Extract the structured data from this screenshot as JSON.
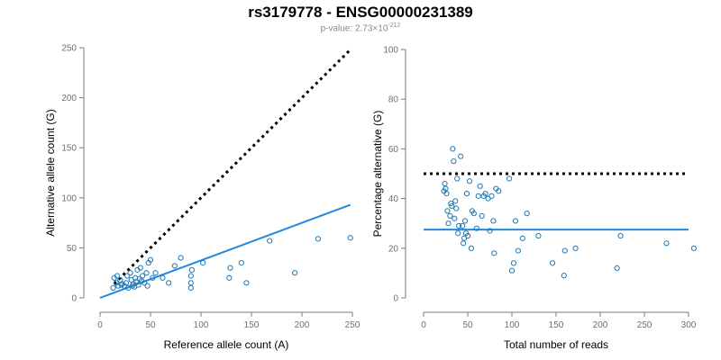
{
  "title": "rs3179778 - ENSG00000231389",
  "subtitle": {
    "prefix": "p-value: 2.73×10",
    "exponent": "-212"
  },
  "colors": {
    "points": "#1f78b4",
    "fit_line": "#1e88e5",
    "reference_line": "#000000",
    "axis": "#7a7a7a"
  },
  "chart_data": [
    {
      "type": "scatter",
      "xlabel": "Reference allele count (A)",
      "ylabel": "Alternative allele count (G)",
      "xlim": [
        0,
        250
      ],
      "ylim": [
        0,
        250
      ],
      "xticks": [
        0,
        50,
        100,
        150,
        200,
        250
      ],
      "yticks": [
        0,
        50,
        100,
        150,
        200,
        250
      ],
      "grid": false,
      "points": [
        [
          13,
          10
        ],
        [
          14,
          20
        ],
        [
          16,
          15
        ],
        [
          17,
          22
        ],
        [
          18,
          12
        ],
        [
          20,
          18
        ],
        [
          21,
          13
        ],
        [
          22,
          14
        ],
        [
          24,
          12
        ],
        [
          26,
          15
        ],
        [
          27,
          22
        ],
        [
          28,
          10
        ],
        [
          30,
          25
        ],
        [
          31,
          18
        ],
        [
          32,
          12
        ],
        [
          33,
          14
        ],
        [
          34,
          11
        ],
        [
          35,
          20
        ],
        [
          36,
          16
        ],
        [
          37,
          28
        ],
        [
          38,
          13
        ],
        [
          39,
          19
        ],
        [
          40,
          30
        ],
        [
          41,
          17
        ],
        [
          42,
          22
        ],
        [
          44,
          15
        ],
        [
          46,
          25
        ],
        [
          47,
          12
        ],
        [
          48,
          35
        ],
        [
          50,
          38
        ],
        [
          52,
          20
        ],
        [
          55,
          25
        ],
        [
          62,
          20
        ],
        [
          68,
          15
        ],
        [
          74,
          32
        ],
        [
          80,
          40
        ],
        [
          90,
          10
        ],
        [
          90,
          15
        ],
        [
          90,
          22
        ],
        [
          91,
          28
        ],
        [
          102,
          35
        ],
        [
          128,
          20
        ],
        [
          129,
          30
        ],
        [
          140,
          35
        ],
        [
          145,
          15
        ],
        [
          168,
          57
        ],
        [
          193,
          25
        ],
        [
          216,
          59
        ],
        [
          248,
          60
        ]
      ],
      "lines": [
        {
          "style": "dotted",
          "from": [
            14,
            14
          ],
          "to": [
            248,
            248
          ]
        },
        {
          "style": "solid",
          "from": [
            0,
            0
          ],
          "to": [
            248,
            93
          ]
        }
      ]
    },
    {
      "type": "scatter",
      "xlabel": "Total number of reads",
      "ylabel": "Percentage alternative (G)",
      "xlim": [
        0,
        300
      ],
      "ylim": [
        0,
        100
      ],
      "xticks": [
        0,
        50,
        100,
        150,
        200,
        250,
        300
      ],
      "yticks": [
        0,
        20,
        40,
        60,
        80,
        100
      ],
      "grid": false,
      "points": [
        [
          23,
          43
        ],
        [
          24,
          46
        ],
        [
          25,
          44
        ],
        [
          26,
          42
        ],
        [
          27,
          35
        ],
        [
          28,
          30
        ],
        [
          30,
          33
        ],
        [
          31,
          38
        ],
        [
          32,
          37
        ],
        [
          33,
          60
        ],
        [
          34,
          55
        ],
        [
          35,
          32
        ],
        [
          36,
          39
        ],
        [
          37,
          36
        ],
        [
          38,
          48
        ],
        [
          39,
          26
        ],
        [
          40,
          29
        ],
        [
          42,
          57
        ],
        [
          44,
          29
        ],
        [
          45,
          22
        ],
        [
          46,
          24
        ],
        [
          47,
          31
        ],
        [
          48,
          26
        ],
        [
          49,
          42
        ],
        [
          50,
          25
        ],
        [
          52,
          47
        ],
        [
          54,
          20
        ],
        [
          55,
          35
        ],
        [
          57,
          34
        ],
        [
          60,
          28
        ],
        [
          62,
          41
        ],
        [
          64,
          45
        ],
        [
          66,
          33
        ],
        [
          68,
          41
        ],
        [
          70,
          42
        ],
        [
          73,
          40
        ],
        [
          75,
          27
        ],
        [
          77,
          41
        ],
        [
          79,
          31
        ],
        [
          80,
          18
        ],
        [
          82,
          44
        ],
        [
          85,
          43
        ],
        [
          97,
          48
        ],
        [
          100,
          11
        ],
        [
          102,
          14
        ],
        [
          104,
          31
        ],
        [
          107,
          19
        ],
        [
          112,
          24
        ],
        [
          117,
          34
        ],
        [
          130,
          25
        ],
        [
          146,
          14
        ],
        [
          159,
          9
        ],
        [
          160,
          19
        ],
        [
          172,
          20
        ],
        [
          219,
          12
        ],
        [
          223,
          25
        ],
        [
          275,
          22
        ],
        [
          306,
          20
        ]
      ],
      "lines": [
        {
          "style": "dotted",
          "from": [
            0,
            50
          ],
          "to": [
            300,
            50
          ]
        },
        {
          "style": "solid",
          "from": [
            0,
            27.5
          ],
          "to": [
            300,
            27.5
          ]
        }
      ]
    }
  ]
}
